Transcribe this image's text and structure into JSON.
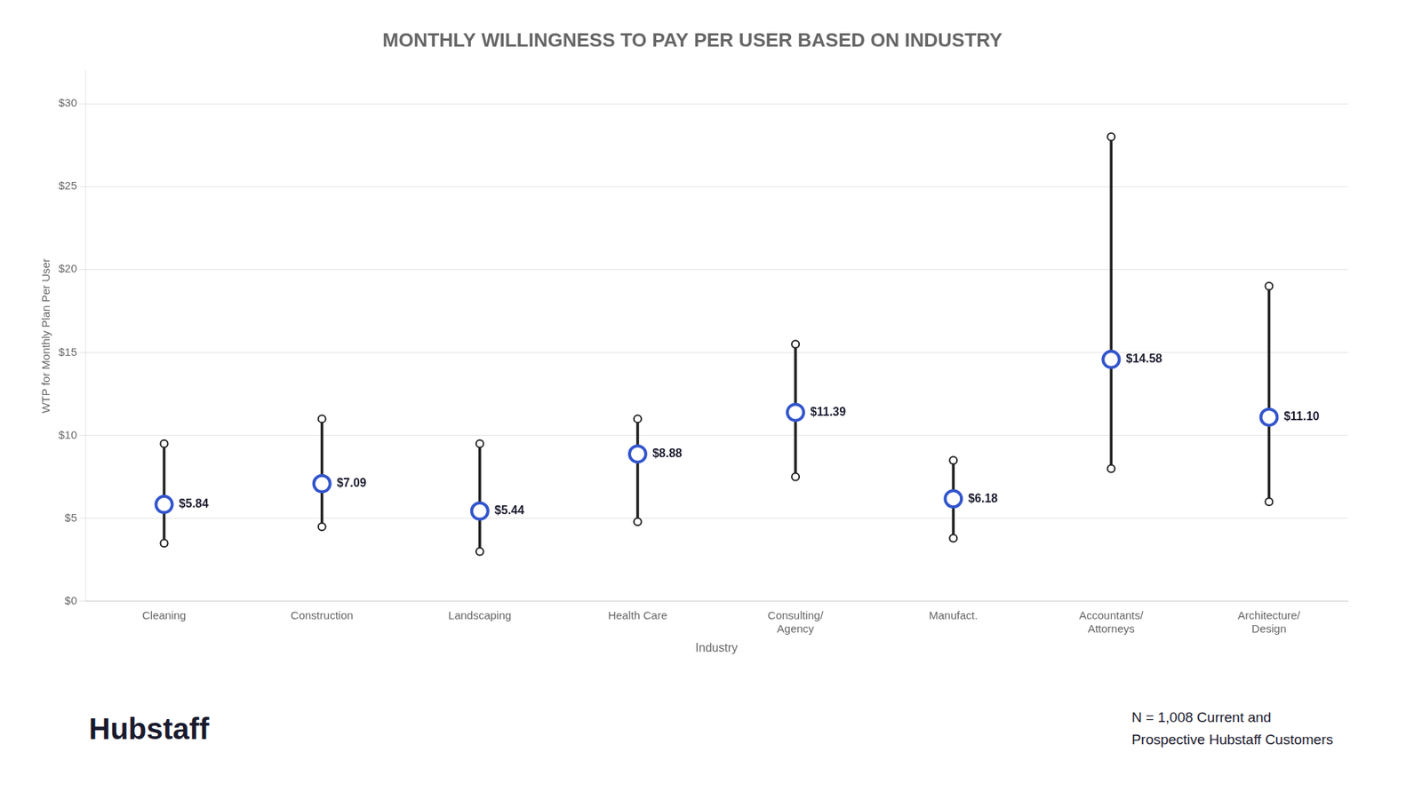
{
  "chart_data": {
    "type": "range",
    "title": "MONTHLY WILLINGNESS TO PAY PER USER BASED ON INDUSTRY",
    "x_label": "Industry",
    "y_label": "WTP for Monthly Plan Per User",
    "categories": [
      "Cleaning",
      "Construction",
      "Landscaping",
      "Health Care",
      "Consulting/\nAgency",
      "Manufact.",
      "Accountants/\nAttorneys",
      "Architecture/\nDesign"
    ],
    "values": [
      5.84,
      7.09,
      5.44,
      8.88,
      11.39,
      6.18,
      14.58,
      11.1
    ],
    "value_labels": [
      "$5.84",
      "$7.09",
      "$5.44",
      "$8.88",
      "$11.39",
      "$6.18",
      "$14.58",
      "$11.10"
    ],
    "low": [
      3.5,
      4.5,
      3.0,
      4.8,
      7.5,
      3.8,
      8.0,
      6.0
    ],
    "high": [
      9.5,
      11.0,
      9.5,
      11.0,
      15.5,
      8.5,
      28.0,
      19.0
    ],
    "color": "#3355CC",
    "ylim": [
      0,
      32
    ],
    "yticks": [
      {
        "value": 0,
        "label": "$0"
      },
      {
        "value": 5,
        "label": "$5"
      },
      {
        "value": 10,
        "label": "$10"
      },
      {
        "value": 15,
        "label": "$15"
      },
      {
        "value": 20,
        "label": "$20"
      },
      {
        "value": 25,
        "label": "$25"
      },
      {
        "value": 30,
        "label": "$30"
      }
    ],
    "grid": true,
    "data_labels": true,
    "annotations": [
      "Hubstaff",
      "N = 1,008 Current and\nProspective Hubstaff Customers"
    ]
  }
}
